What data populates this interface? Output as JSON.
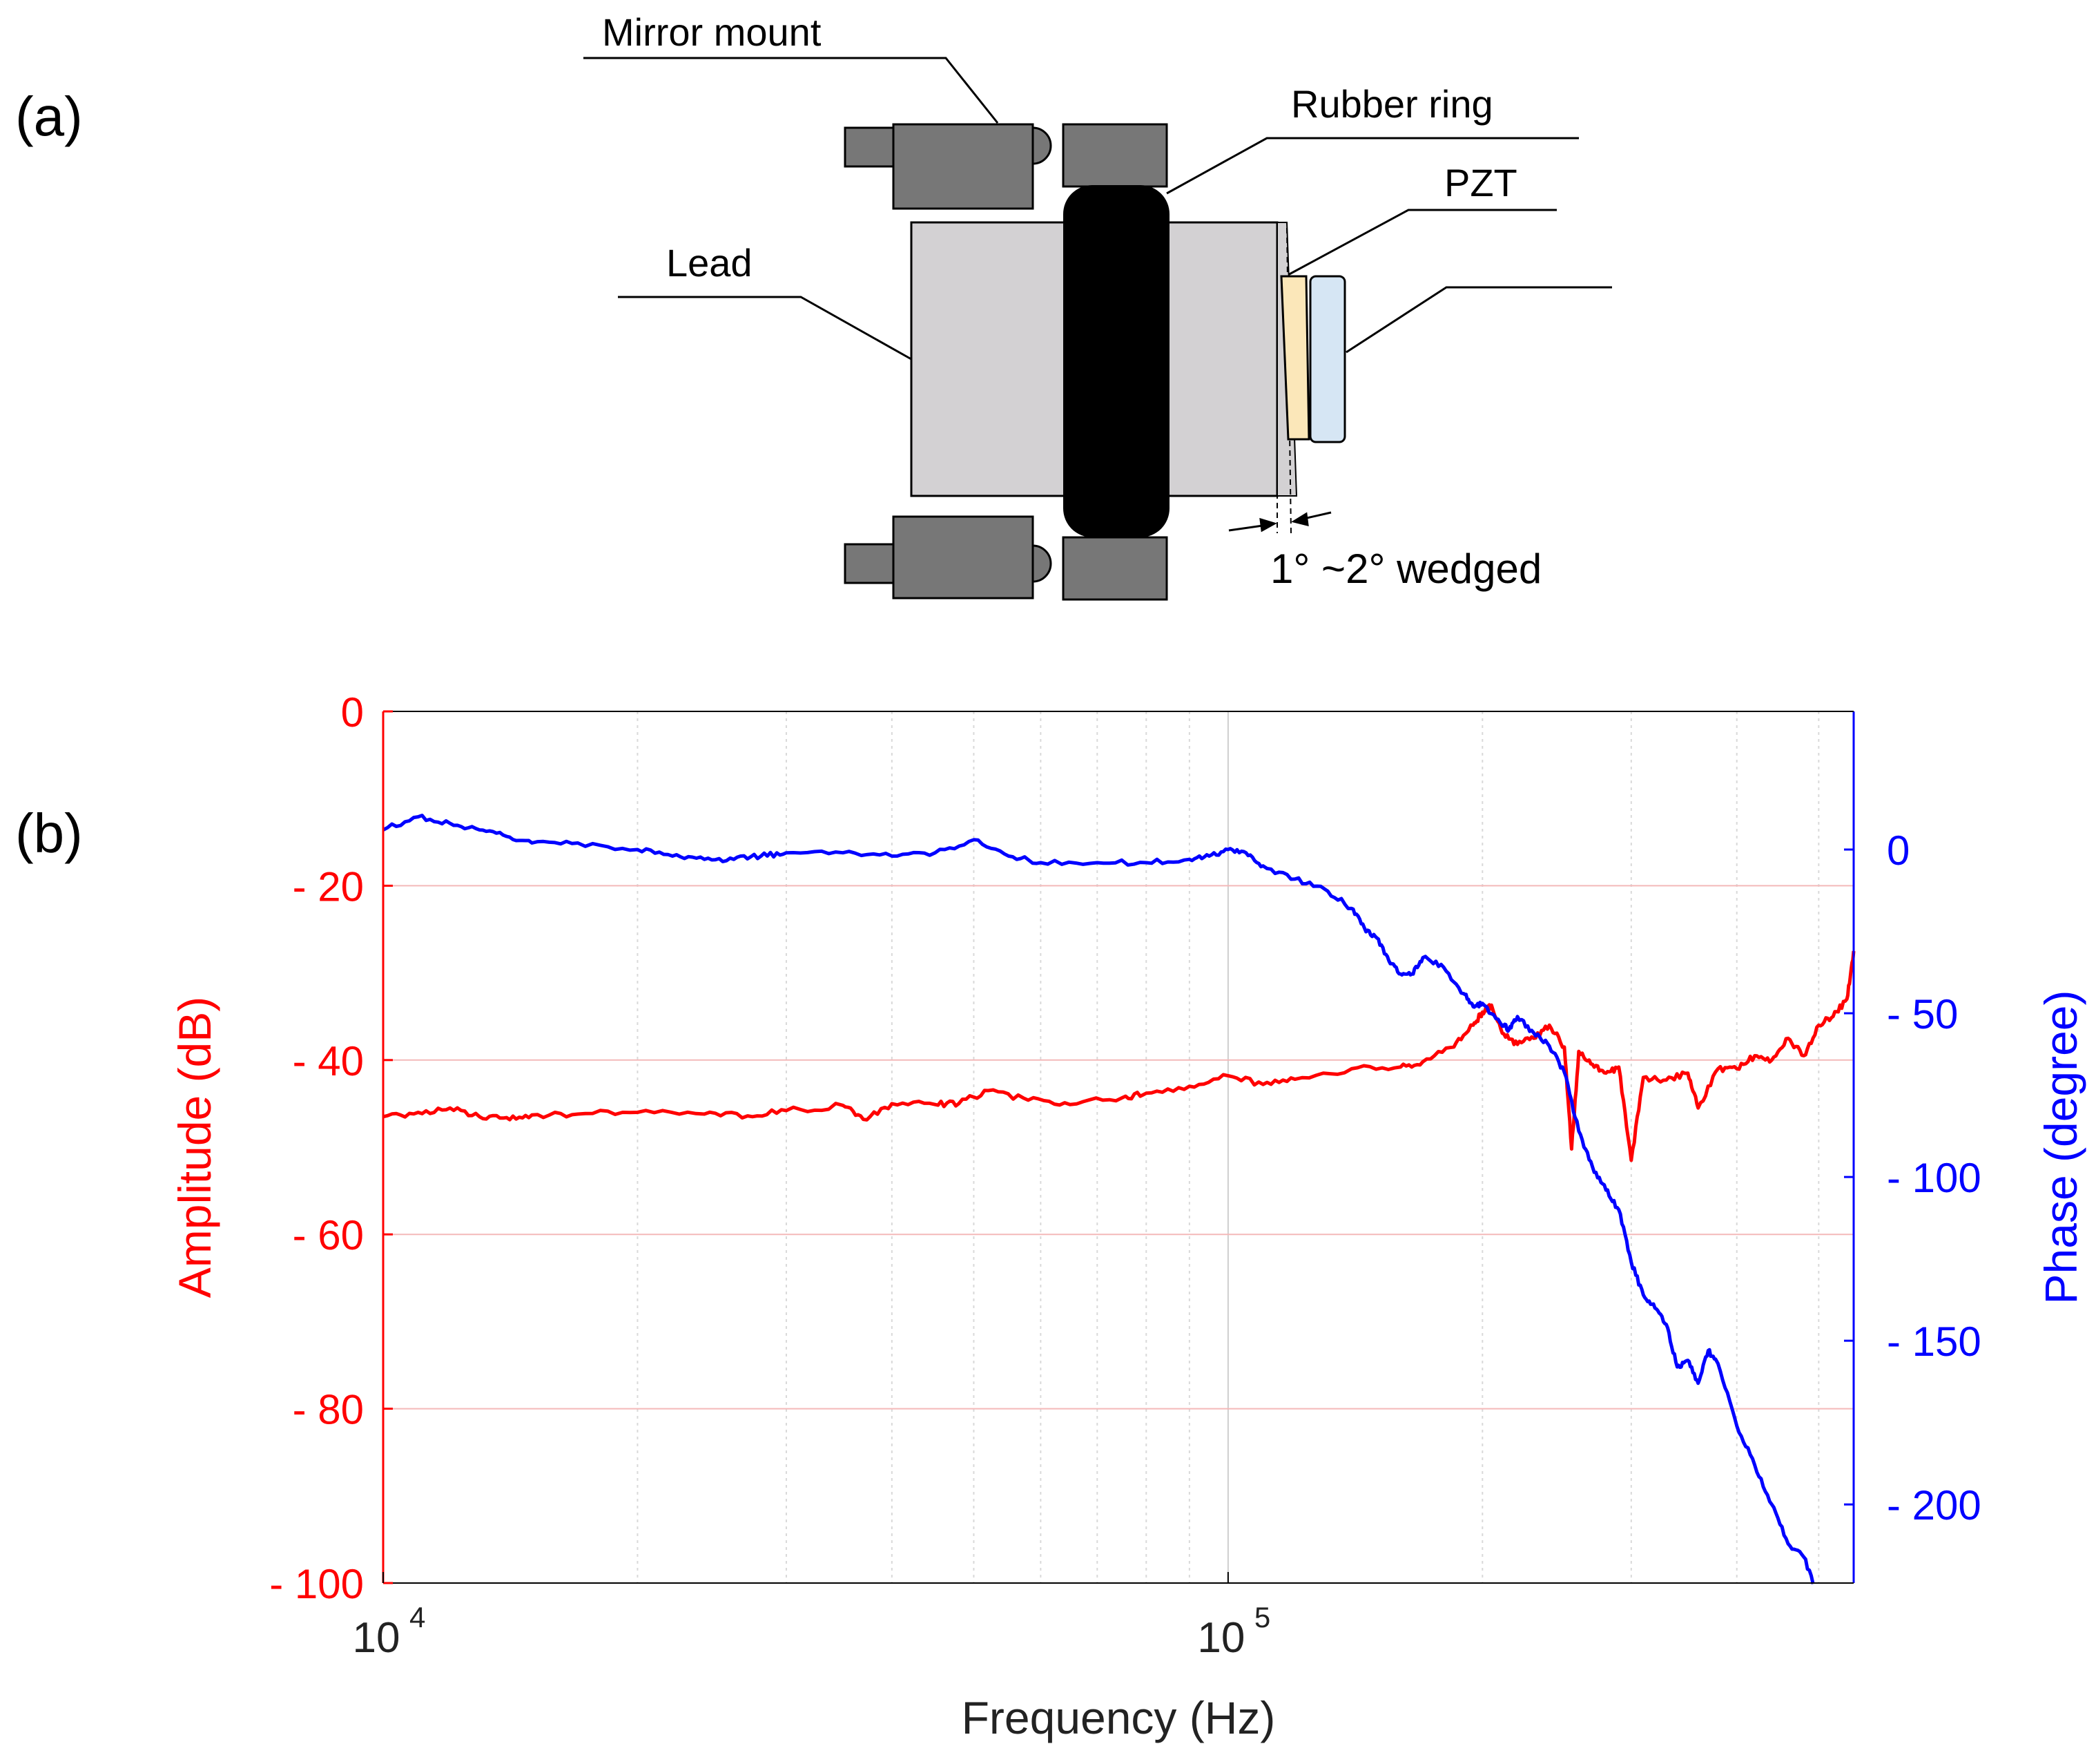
{
  "panel_a": {
    "label": "(a)",
    "labels": {
      "mirror_mount": "Mirror mount",
      "rubber_ring": "Rubber ring",
      "pzt": "PZT",
      "lead": "Lead",
      "wedge": "1° ~2° wedged"
    },
    "colors": {
      "mount": "#777777",
      "lead": "#d3d1d3",
      "rubber": "#000000",
      "pzt": "#fbe7b9",
      "mirror": "#d6e6f4"
    }
  },
  "panel_b": {
    "label": "(b)",
    "colors": {
      "amplitude": "#ff0000",
      "phase": "#0000ff",
      "grid": "#f4b9b9"
    }
  },
  "chart_data": {
    "type": "line",
    "xlabel": "Frequency (Hz)",
    "xscale": "log",
    "xlim": [
      10000,
      550000
    ],
    "x_ticks": [
      10000,
      100000
    ],
    "x_tick_labels": [
      {
        "base": "10",
        "exp": "4"
      },
      {
        "base": "10",
        "exp": "5"
      }
    ],
    "y_left": {
      "label": "Amplitude (dB)",
      "lim": [
        -100,
        0
      ],
      "ticks": [
        0,
        -20,
        -40,
        -60,
        -80,
        -100
      ],
      "tick_labels": [
        "0",
        "- 20",
        "- 40",
        "- 60",
        "- 80",
        "- 100"
      ]
    },
    "y_right": {
      "label": "Phase (degree)",
      "lim": [
        -224,
        0
      ],
      "ticks": [
        0,
        -50,
        -100,
        -150,
        -200
      ],
      "tick_labels": [
        "0",
        "- 50",
        "- 100",
        "- 150",
        "- 200"
      ]
    },
    "grid": true,
    "series": [
      {
        "axis": "left",
        "x": [
          10000,
          11000,
          12000,
          13000,
          14000,
          15000,
          17000,
          20000,
          24000,
          27000,
          30000,
          35000,
          37000,
          40000,
          45000,
          48000,
          52000,
          58000,
          65000,
          75000,
          80000,
          90000,
          100000,
          110000,
          120000,
          140000,
          160000,
          170000,
          185000,
          195000,
          200000,
          205000,
          212000,
          220000,
          230000,
          240000,
          250000,
          255000,
          260000,
          270000,
          280000,
          290000,
          300000,
          310000,
          330000,
          350000,
          360000,
          380000,
          400000,
          420000,
          440000,
          460000,
          480000,
          500000,
          520000,
          540000,
          550000
        ],
        "values": [
          -46.5,
          -46.0,
          -45.5,
          -46.5,
          -46.6,
          -46.3,
          -46.2,
          -46.0,
          -46.2,
          -46.4,
          -45.8,
          -45.2,
          -46.8,
          -45.0,
          -45.1,
          -45.0,
          -43.5,
          -44.6,
          -45.1,
          -44.3,
          -43.8,
          -43.0,
          -41.8,
          -42.8,
          -42.2,
          -41.0,
          -40.8,
          -40.2,
          -38.5,
          -36.0,
          -34.5,
          -33.7,
          -37.0,
          -38.2,
          -37.5,
          -36.0,
          -38.5,
          -50.2,
          -39.0,
          -40.5,
          -41.5,
          -40.8,
          -51.5,
          -42.0,
          -42.3,
          -41.5,
          -45.5,
          -41.0,
          -41.0,
          -39.5,
          -40.0,
          -37.5,
          -39.5,
          -36.0,
          -35.0,
          -33.0,
          -27.5
        ]
      },
      {
        "axis": "right",
        "x": [
          10000,
          11000,
          12000,
          13000,
          14000,
          15000,
          17000,
          20000,
          22000,
          24000,
          26000,
          28000,
          30000,
          35000,
          40000,
          45000,
          50000,
          55000,
          60000,
          70000,
          80000,
          90000,
          95000,
          100000,
          105000,
          110000,
          120000,
          130000,
          140000,
          145000,
          150000,
          155000,
          160000,
          165000,
          170000,
          180000,
          190000,
          195000,
          200000,
          210000,
          215000,
          220000,
          230000,
          240000,
          250000,
          260000,
          270000,
          280000,
          290000,
          300000,
          310000,
          320000,
          330000,
          340000,
          350000,
          360000,
          370000,
          380000,
          400000,
          420000,
          440000,
          460000,
          480000,
          500000
        ],
        "values": [
          6,
          10,
          8,
          6,
          4,
          2,
          2,
          0,
          -2,
          -3,
          -3,
          -2,
          -1,
          -1,
          -2,
          -1,
          3,
          -2,
          -4,
          -4,
          -4,
          -3,
          -2,
          0,
          -1,
          -5,
          -9,
          -12,
          -18,
          -24,
          -27,
          -34,
          -38,
          -38,
          -33,
          -36,
          -44,
          -48,
          -47,
          -53,
          -55,
          -51,
          -56,
          -60,
          -68,
          -86,
          -97,
          -104,
          -110,
          -126,
          -136,
          -140,
          -145,
          -158,
          -156,
          -163,
          -153,
          -157,
          -176,
          -188,
          -200,
          -212,
          -216,
          -228
        ]
      }
    ]
  }
}
